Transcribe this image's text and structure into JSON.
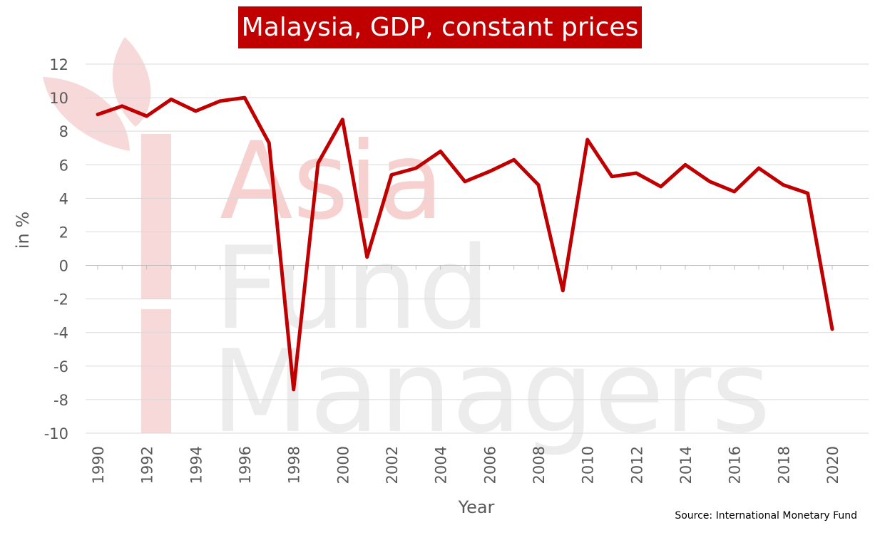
{
  "chart_data": {
    "type": "line",
    "title": "Malaysia, GDP, constant prices",
    "xlabel": "Year",
    "ylabel": "in %",
    "source": "Source: International Monetary Fund",
    "ylim": [
      -10,
      12
    ],
    "yticks": [
      12,
      10,
      8,
      6,
      4,
      2,
      0,
      -2,
      -4,
      -6,
      -8,
      -10
    ],
    "xlim": [
      1990,
      2020
    ],
    "xticks": [
      1990,
      1992,
      1994,
      1996,
      1998,
      2000,
      2002,
      2004,
      2006,
      2008,
      2010,
      2012,
      2014,
      2016,
      2018,
      2020
    ],
    "grid": true,
    "x": [
      1990,
      1991,
      1992,
      1993,
      1994,
      1995,
      1996,
      1997,
      1998,
      1999,
      2000,
      2001,
      2002,
      2003,
      2004,
      2005,
      2006,
      2007,
      2008,
      2009,
      2010,
      2011,
      2012,
      2013,
      2014,
      2015,
      2016,
      2017,
      2018,
      2019,
      2020
    ],
    "values": [
      9.0,
      9.5,
      8.9,
      9.9,
      9.2,
      9.8,
      10.0,
      7.3,
      -7.4,
      6.1,
      8.7,
      0.5,
      5.4,
      5.8,
      6.8,
      5.0,
      5.6,
      6.3,
      4.8,
      -1.5,
      7.5,
      5.3,
      5.5,
      4.7,
      6.0,
      5.0,
      4.4,
      5.8,
      4.8,
      4.3,
      -3.8
    ],
    "line_color": "#c00000",
    "watermark": {
      "line1": "Asia",
      "line2": "Fund",
      "line3": "Managers",
      "accent_color": "#f2c4c4",
      "gray_color": "#e6e6e6"
    }
  }
}
